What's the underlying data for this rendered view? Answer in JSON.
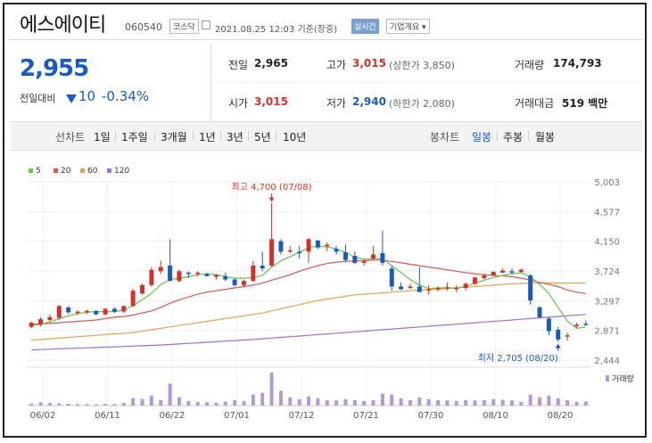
{
  "header": {
    "title": "에스에이티",
    "code": "060540",
    "market_badge": "코스닥",
    "date": "2021.08.25 12:03",
    "basis": "기준(장중)",
    "realtime": "실시간",
    "company_overview": "기업개요",
    "dropdown_arrow": "▾"
  },
  "price": {
    "current": "2,955",
    "change_label": "전일대비",
    "change": "10",
    "change_pct": "-0.34%"
  },
  "stats": {
    "prev_close_label": "전일",
    "prev_close": "2,965",
    "high_label": "고가",
    "high": "3,015",
    "high_limit": "(상한가 3,850)",
    "volume_label": "거래량",
    "volume": "174,793",
    "open_label": "시가",
    "open": "3,015",
    "low_label": "저가",
    "low": "2,940",
    "low_limit": "(하한가 2,080)",
    "amount_label": "거래대금",
    "amount": "519 백만"
  },
  "toolbar": {
    "line_chart_label": "선차트",
    "periods": [
      "1일",
      "1주일",
      "3개월",
      "1년",
      "3년",
      "5년",
      "10년"
    ],
    "candle_label": "봉차트",
    "candle_types": [
      "일봉",
      "주봉",
      "월봉"
    ],
    "candle_selected": 0
  },
  "legend": [
    {
      "name": "5",
      "color": "#5dc94b"
    },
    {
      "name": "20",
      "color": "#e05353"
    },
    {
      "name": "60",
      "color": "#e8a34d"
    },
    {
      "name": "120",
      "color": "#a070d0"
    }
  ],
  "colors": {
    "up": "#d3312c",
    "down": "#1a5bbd",
    "volume": "#b39ad6"
  },
  "annotations": {
    "high_note": "최고 4,700 (07/08)",
    "low_note": "최저 2,705 (08/20)",
    "volume_label": "거래량"
  },
  "chart_data": {
    "type": "candlestick",
    "ylim": [
      2444,
      5003
    ],
    "y_ticks": [
      "5,003",
      "4,577",
      "4,150",
      "3,724",
      "3,297",
      "2,871",
      "2,444"
    ],
    "x_ticks": [
      "06/02",
      "06/11",
      "06/22",
      "07/01",
      "07/12",
      "07/21",
      "07/30",
      "08/10",
      "08/20"
    ],
    "candles": [
      [
        2920,
        3000,
        2900,
        2980
      ],
      [
        2950,
        3060,
        2930,
        3030
      ],
      [
        3020,
        3100,
        3000,
        3060
      ],
      [
        3050,
        3240,
        3020,
        3220
      ],
      [
        3200,
        3220,
        3110,
        3130
      ],
      [
        3120,
        3160,
        3090,
        3140
      ],
      [
        3140,
        3170,
        3100,
        3150
      ],
      [
        3150,
        3160,
        3090,
        3100
      ],
      [
        3100,
        3190,
        3080,
        3180
      ],
      [
        3180,
        3200,
        3120,
        3140
      ],
      [
        3140,
        3230,
        3120,
        3220
      ],
      [
        3220,
        3470,
        3210,
        3440
      ],
      [
        3400,
        3540,
        3380,
        3520
      ],
      [
        3520,
        3780,
        3500,
        3740
      ],
      [
        3720,
        3870,
        3680,
        3780
      ],
      [
        3800,
        4180,
        3580,
        3580
      ],
      [
        3580,
        3740,
        3560,
        3720
      ],
      [
        3700,
        3720,
        3620,
        3680
      ],
      [
        3680,
        3720,
        3640,
        3700
      ],
      [
        3680,
        3700,
        3640,
        3650
      ],
      [
        3640,
        3680,
        3600,
        3670
      ],
      [
        3650,
        3700,
        3580,
        3600
      ],
      [
        3600,
        3620,
        3500,
        3520
      ],
      [
        3520,
        3600,
        3490,
        3580
      ],
      [
        3580,
        3870,
        3570,
        3800
      ],
      [
        3800,
        4000,
        3720,
        3760
      ],
      [
        3800,
        4700,
        3780,
        4180
      ],
      [
        4150,
        4180,
        3960,
        4000
      ],
      [
        4010,
        4080,
        3980,
        4020
      ],
      [
        4000,
        4080,
        3900,
        3980
      ],
      [
        4000,
        4200,
        3840,
        4180
      ],
      [
        4160,
        4170,
        4040,
        4060
      ],
      [
        4080,
        4130,
        4010,
        4100
      ],
      [
        4040,
        4080,
        3960,
        4000
      ],
      [
        3990,
        4100,
        3850,
        3880
      ],
      [
        3940,
        4000,
        3820,
        3840
      ],
      [
        3840,
        3900,
        3800,
        3860
      ],
      [
        3900,
        4080,
        3880,
        3960
      ],
      [
        3980,
        4300,
        3800,
        3840
      ],
      [
        3760,
        3800,
        3440,
        3500
      ],
      [
        3500,
        3560,
        3450,
        3460
      ],
      [
        3480,
        3540,
        3460,
        3500
      ],
      [
        3500,
        3780,
        3420,
        3420
      ],
      [
        3440,
        3520,
        3380,
        3460
      ],
      [
        3460,
        3500,
        3430,
        3480
      ],
      [
        3480,
        3560,
        3440,
        3490
      ],
      [
        3460,
        3520,
        3420,
        3480
      ],
      [
        3480,
        3560,
        3440,
        3540
      ],
      [
        3540,
        3640,
        3520,
        3630
      ],
      [
        3620,
        3680,
        3600,
        3660
      ],
      [
        3660,
        3720,
        3650,
        3710
      ],
      [
        3700,
        3760,
        3690,
        3730
      ],
      [
        3720,
        3760,
        3680,
        3700
      ],
      [
        3710,
        3760,
        3700,
        3740
      ],
      [
        3660,
        3680,
        3240,
        3300
      ],
      [
        3200,
        3220,
        3040,
        3060
      ],
      [
        3040,
        3060,
        2800,
        2860
      ],
      [
        2880,
        2920,
        2705,
        2740
      ],
      [
        2780,
        2840,
        2720,
        2800
      ],
      [
        2930,
        2980,
        2900,
        2950
      ],
      [
        2965,
        3015,
        2940,
        2955
      ]
    ],
    "volume": [
      10,
      18,
      14,
      12,
      10,
      8,
      7,
      6,
      9,
      8,
      14,
      40,
      36,
      55,
      30,
      120,
      45,
      25,
      20,
      18,
      15,
      22,
      30,
      25,
      60,
      70,
      180,
      80,
      45,
      35,
      50,
      40,
      30,
      28,
      35,
      30,
      25,
      30,
      65,
      60,
      40,
      30,
      45,
      35,
      30,
      28,
      25,
      30,
      28,
      30,
      35,
      32,
      28,
      20,
      60,
      45,
      55,
      40,
      30,
      20,
      22
    ],
    "ma5": [
      2940,
      2960,
      2990,
      3040,
      3080,
      3110,
      3130,
      3140,
      3140,
      3140,
      3160,
      3230,
      3310,
      3400,
      3530,
      3600,
      3620,
      3640,
      3670,
      3680,
      3670,
      3640,
      3620,
      3620,
      3630,
      3660,
      3780,
      3870,
      3930,
      3990,
      4060,
      4080,
      4070,
      4040,
      3990,
      3920,
      3890,
      3900,
      3900,
      3800,
      3700,
      3600,
      3520,
      3470,
      3480,
      3480,
      3480,
      3500,
      3550,
      3590,
      3630,
      3660,
      3680,
      3700,
      3640,
      3530,
      3400,
      3200,
      3000,
      2900,
      2920
    ],
    "ma20": [
      2960,
      2965,
      2970,
      2980,
      2990,
      3000,
      3010,
      3020,
      3040,
      3060,
      3070,
      3090,
      3120,
      3150,
      3200,
      3260,
      3310,
      3350,
      3390,
      3420,
      3440,
      3460,
      3480,
      3500,
      3520,
      3550,
      3590,
      3630,
      3670,
      3720,
      3760,
      3800,
      3830,
      3850,
      3860,
      3870,
      3870,
      3880,
      3880,
      3860,
      3840,
      3820,
      3800,
      3780,
      3760,
      3740,
      3720,
      3700,
      3680,
      3670,
      3660,
      3650,
      3640,
      3620,
      3590,
      3560,
      3530,
      3500,
      3450,
      3420,
      3400
    ],
    "ma60": [
      2730,
      2740,
      2750,
      2760,
      2770,
      2780,
      2790,
      2800,
      2810,
      2820,
      2830,
      2840,
      2860,
      2880,
      2900,
      2920,
      2940,
      2960,
      2980,
      3000,
      3020,
      3040,
      3060,
      3080,
      3100,
      3120,
      3150,
      3180,
      3210,
      3240,
      3270,
      3300,
      3320,
      3340,
      3360,
      3380,
      3390,
      3400,
      3410,
      3420,
      3430,
      3440,
      3450,
      3460,
      3460,
      3470,
      3480,
      3490,
      3500,
      3510,
      3520,
      3530,
      3540,
      3545,
      3550,
      3550,
      3550,
      3550,
      3550,
      3550,
      3550
    ],
    "ma120": [
      2590,
      2595,
      2600,
      2605,
      2610,
      2615,
      2620,
      2625,
      2630,
      2635,
      2640,
      2645,
      2650,
      2655,
      2660,
      2668,
      2676,
      2684,
      2692,
      2700,
      2708,
      2716,
      2724,
      2732,
      2740,
      2750,
      2760,
      2770,
      2780,
      2790,
      2800,
      2810,
      2820,
      2830,
      2840,
      2850,
      2860,
      2870,
      2880,
      2890,
      2900,
      2910,
      2920,
      2930,
      2940,
      2950,
      2960,
      2970,
      2980,
      2990,
      3000,
      3010,
      3020,
      3030,
      3040,
      3050,
      3060,
      3070,
      3080,
      3090,
      3100
    ]
  }
}
